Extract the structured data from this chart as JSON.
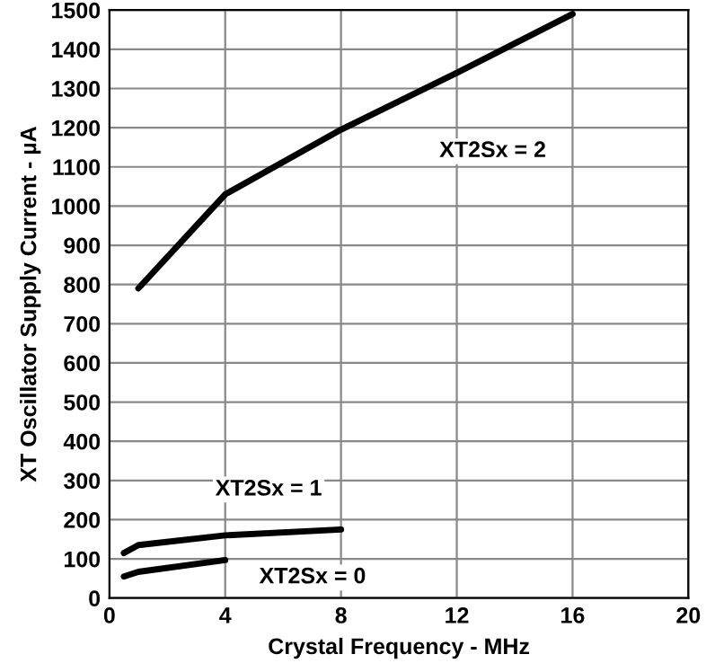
{
  "chart_data": {
    "type": "line",
    "xlabel": "Crystal Frequency - MHz",
    "ylabel": "XT Oscillator Supply Current - µA",
    "xlim": [
      0,
      20
    ],
    "xticks": [
      0,
      4,
      8,
      12,
      16,
      20
    ],
    "ylim": [
      0,
      1500
    ],
    "yticks": [
      0,
      100,
      200,
      300,
      400,
      500,
      600,
      700,
      800,
      900,
      1000,
      1100,
      1200,
      1300,
      1400,
      1500
    ],
    "grid": true,
    "marker": "none",
    "line_style": "solid",
    "series": [
      {
        "name": "XT2Sx = 2",
        "color": "#000000",
        "x": [
          1,
          4,
          8,
          12,
          16
        ],
        "values": [
          790,
          1030,
          1195,
          1340,
          1490
        ]
      },
      {
        "name": "XT2Sx = 1",
        "color": "#000000",
        "x": [
          0.5,
          1,
          4,
          8
        ],
        "values": [
          115,
          135,
          160,
          175
        ]
      },
      {
        "name": "XT2Sx = 0",
        "color": "#000000",
        "x": [
          0.5,
          1,
          4
        ],
        "values": [
          55,
          67,
          97
        ]
      }
    ]
  }
}
